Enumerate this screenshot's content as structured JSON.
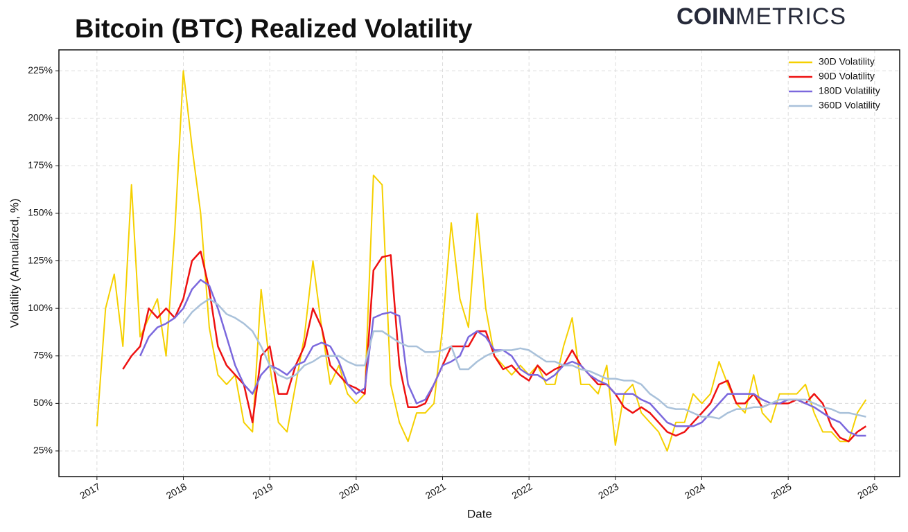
{
  "header": {
    "logo": [
      "COIN",
      "METRICS"
    ]
  },
  "chart_data": {
    "type": "line",
    "title": "Bitcoin (BTC) Realized Volatility",
    "x_label": "Date",
    "y_label": "Volatility (Annualized, %)",
    "x": [
      2017.0,
      2017.1,
      2017.2,
      2017.3,
      2017.4,
      2017.5,
      2017.6,
      2017.7,
      2017.8,
      2017.9,
      2018.0,
      2018.1,
      2018.2,
      2018.3,
      2018.4,
      2018.5,
      2018.6,
      2018.7,
      2018.8,
      2018.9,
      2019.0,
      2019.1,
      2019.2,
      2019.3,
      2019.4,
      2019.5,
      2019.6,
      2019.7,
      2019.8,
      2019.9,
      2020.0,
      2020.1,
      2020.2,
      2020.3,
      2020.4,
      2020.5,
      2020.6,
      2020.7,
      2020.8,
      2020.9,
      2021.0,
      2021.1,
      2021.2,
      2021.3,
      2021.4,
      2021.5,
      2021.6,
      2021.7,
      2021.8,
      2021.9,
      2022.0,
      2022.1,
      2022.2,
      2022.3,
      2022.4,
      2022.5,
      2022.6,
      2022.7,
      2022.8,
      2022.9,
      2023.0,
      2023.1,
      2023.2,
      2023.3,
      2023.4,
      2023.5,
      2023.6,
      2023.7,
      2023.8,
      2023.9,
      2024.0,
      2024.1,
      2024.2,
      2024.3,
      2024.4,
      2024.5,
      2024.6,
      2024.7,
      2024.8,
      2024.9,
      2025.0,
      2025.1,
      2025.2,
      2025.3,
      2025.4,
      2025.5,
      2025.6,
      2025.7,
      2025.8,
      2025.9
    ],
    "series": [
      {
        "name": "30D Volatility",
        "color": "#f5d000",
        "values": [
          38,
          100,
          118,
          80,
          165,
          85,
          95,
          105,
          75,
          140,
          225,
          185,
          150,
          90,
          65,
          60,
          65,
          40,
          35,
          110,
          70,
          40,
          35,
          60,
          85,
          125,
          90,
          60,
          70,
          55,
          50,
          55,
          170,
          165,
          60,
          40,
          30,
          45,
          45,
          50,
          90,
          145,
          105,
          90,
          150,
          100,
          75,
          70,
          65,
          70,
          65,
          70,
          60,
          60,
          80,
          95,
          60,
          60,
          55,
          70,
          28,
          55,
          60,
          45,
          40,
          35,
          25,
          40,
          40,
          55,
          50,
          55,
          72,
          60,
          50,
          45,
          65,
          45,
          40,
          55,
          55,
          55,
          60,
          45,
          35,
          35,
          30,
          30,
          45,
          52
        ]
      },
      {
        "name": "90D Volatility",
        "color": "#ee1111",
        "values": [
          null,
          null,
          null,
          68,
          75,
          80,
          100,
          95,
          100,
          95,
          105,
          125,
          130,
          110,
          80,
          70,
          65,
          60,
          40,
          75,
          80,
          55,
          55,
          70,
          80,
          100,
          90,
          70,
          65,
          60,
          58,
          55,
          120,
          127,
          128,
          70,
          48,
          48,
          50,
          60,
          70,
          80,
          80,
          80,
          88,
          88,
          75,
          68,
          70,
          65,
          62,
          70,
          65,
          68,
          70,
          78,
          70,
          65,
          60,
          60,
          55,
          48,
          45,
          48,
          45,
          40,
          35,
          33,
          35,
          40,
          45,
          50,
          60,
          62,
          50,
          50,
          55,
          48,
          50,
          50,
          50,
          52,
          50,
          55,
          50,
          38,
          32,
          30,
          35,
          38
        ]
      },
      {
        "name": "180D Volatility",
        "color": "#7b68dd",
        "values": [
          null,
          null,
          null,
          null,
          null,
          75,
          85,
          90,
          92,
          95,
          100,
          110,
          115,
          112,
          100,
          85,
          70,
          60,
          55,
          65,
          70,
          68,
          65,
          70,
          72,
          80,
          82,
          80,
          72,
          60,
          55,
          58,
          95,
          97,
          98,
          96,
          60,
          50,
          52,
          60,
          70,
          72,
          75,
          85,
          88,
          85,
          78,
          78,
          75,
          68,
          65,
          65,
          62,
          65,
          70,
          72,
          70,
          65,
          62,
          60,
          55,
          55,
          55,
          52,
          50,
          45,
          40,
          38,
          38,
          38,
          40,
          45,
          50,
          55,
          55,
          55,
          55,
          52,
          50,
          50,
          52,
          52,
          50,
          48,
          45,
          42,
          40,
          35,
          33,
          33
        ]
      },
      {
        "name": "360D Volatility",
        "color": "#a9c1da",
        "values": [
          null,
          null,
          null,
          null,
          null,
          null,
          null,
          null,
          null,
          null,
          92,
          98,
          102,
          105,
          102,
          97,
          95,
          92,
          88,
          80,
          70,
          65,
          63,
          65,
          70,
          72,
          75,
          75,
          75,
          72,
          70,
          70,
          88,
          88,
          85,
          82,
          80,
          80,
          77,
          77,
          78,
          80,
          68,
          68,
          72,
          75,
          77,
          78,
          78,
          79,
          78,
          75,
          72,
          72,
          70,
          70,
          68,
          67,
          65,
          63,
          63,
          62,
          62,
          60,
          55,
          52,
          48,
          47,
          47,
          45,
          43,
          43,
          42,
          45,
          47,
          47,
          48,
          48,
          50,
          52,
          52,
          52,
          52,
          50,
          48,
          47,
          45,
          45,
          44,
          43
        ]
      }
    ],
    "xlim": [
      2016.56,
      2026.29
    ],
    "xticks": [
      2017,
      2018,
      2019,
      2020,
      2021,
      2022,
      2023,
      2024,
      2025,
      2026
    ],
    "ylim": [
      11.5,
      236
    ],
    "yticks": [
      {
        "value": 25,
        "label": "25%"
      },
      {
        "value": 50,
        "label": "50%"
      },
      {
        "value": 75,
        "label": "75%"
      },
      {
        "value": 100,
        "label": "100%"
      },
      {
        "value": 125,
        "label": "125%"
      },
      {
        "value": 150,
        "label": "150%"
      },
      {
        "value": 175,
        "label": "175%"
      },
      {
        "value": 200,
        "label": "200%"
      },
      {
        "value": 225,
        "label": "225%"
      }
    ],
    "grid": true,
    "legend": "upper right"
  }
}
